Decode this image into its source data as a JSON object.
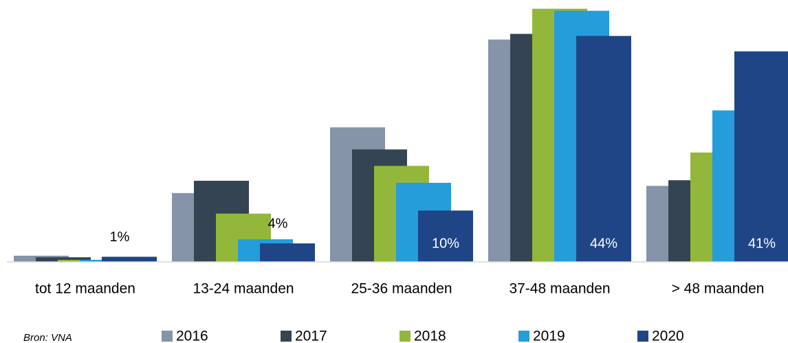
{
  "chart_data": {
    "type": "bar",
    "source": "Bron: VNA",
    "categories": [
      "tot 12 maanden",
      "13-24 maanden",
      "25-36 maanden",
      "37-48 maanden",
      "> 48 maanden"
    ],
    "series": [
      {
        "name": "2016",
        "color": "#8594a8",
        "values": [
          1.2,
          13.4,
          26.2,
          43.3,
          14.8
        ]
      },
      {
        "name": "2017",
        "color": "#354452",
        "values": [
          0.9,
          15.8,
          21.9,
          44.4,
          15.9
        ]
      },
      {
        "name": "2018",
        "color": "#93b73a",
        "values": [
          0.4,
          9.4,
          18.7,
          49.3,
          21.3
        ]
      },
      {
        "name": "2019",
        "color": "#249dda",
        "values": [
          0.4,
          4.4,
          15.4,
          48.9,
          29.5
        ]
      },
      {
        "name": "2020",
        "color": "#1f4586",
        "values": [
          1,
          3.6,
          10,
          44,
          41
        ],
        "value_labels": [
          "1%",
          "4%",
          "10%",
          "44%",
          "41%"
        ]
      }
    ],
    "ylim": [
      0,
      51
    ]
  }
}
